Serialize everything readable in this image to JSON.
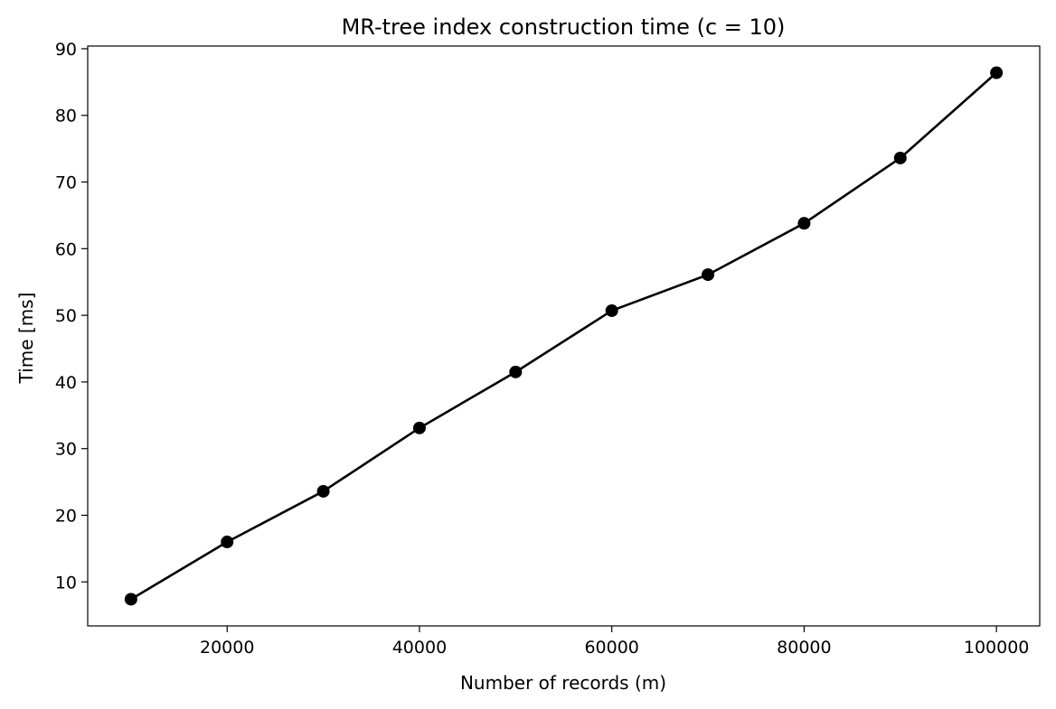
{
  "chart_data": {
    "type": "line",
    "title": "MR-tree index construction time (c = 10)",
    "xlabel": "Number of records (m)",
    "ylabel": "Time [ms]",
    "xlim": [
      5500,
      104500
    ],
    "ylim": [
      3.4,
      90.4
    ],
    "xticks": [
      20000,
      40000,
      60000,
      80000,
      100000
    ],
    "yticks": [
      10,
      20,
      30,
      40,
      50,
      60,
      70,
      80,
      90
    ],
    "grid": false,
    "series": [
      {
        "color": "#000000",
        "marker": "circle",
        "x": [
          10000,
          20000,
          30000,
          40000,
          50000,
          60000,
          70000,
          80000,
          90000,
          100000
        ],
        "y": [
          7.4,
          16.0,
          23.6,
          33.1,
          41.5,
          50.7,
          56.1,
          63.8,
          73.6,
          86.4
        ]
      }
    ]
  }
}
